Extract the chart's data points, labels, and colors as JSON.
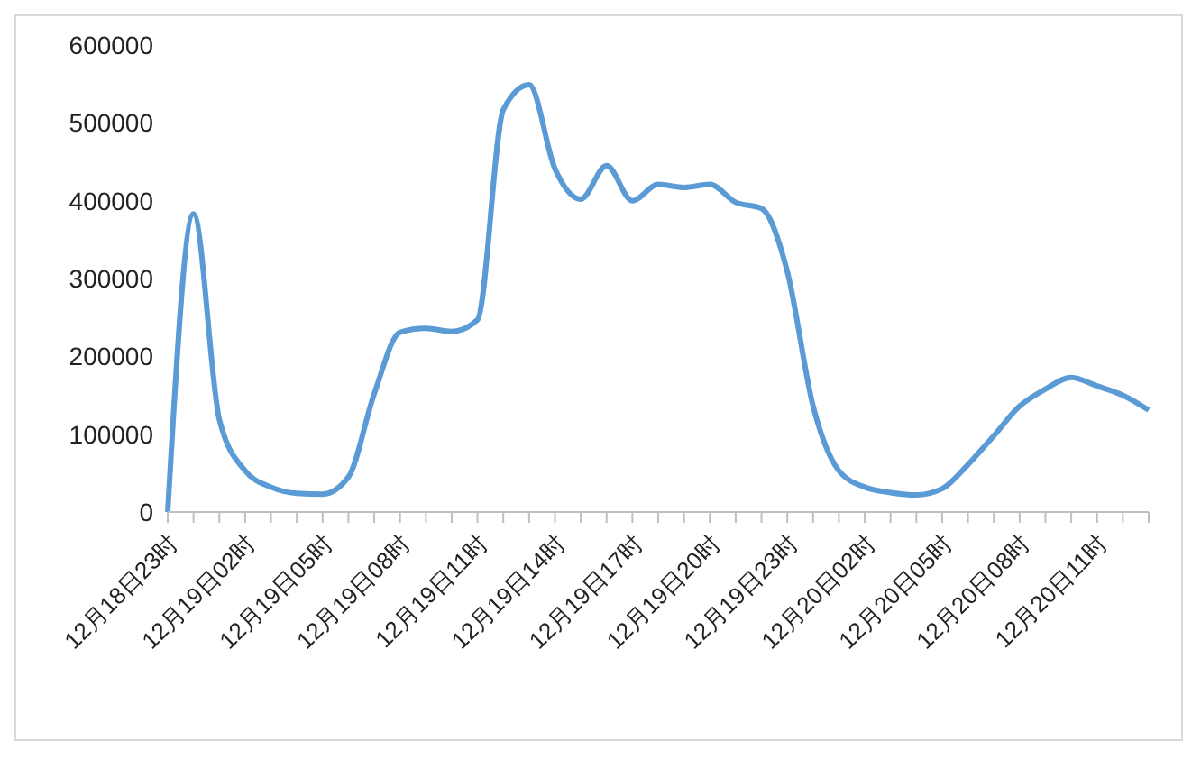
{
  "chart_data": {
    "type": "line",
    "categories": [
      "12月18日23时",
      null,
      null,
      "12月19日02时",
      null,
      null,
      "12月19日05时",
      null,
      null,
      "12月19日08时",
      null,
      null,
      "12月19日11时",
      null,
      null,
      "12月19日14时",
      null,
      null,
      "12月19日17时",
      null,
      null,
      "12月19日20时",
      null,
      null,
      "12月19日23时",
      null,
      null,
      "12月20日02时",
      null,
      null,
      "12月20日05时",
      null,
      null,
      "12月20日08时",
      null,
      null,
      "12月20日11时",
      null,
      null
    ],
    "series": [
      {
        "color": "#5b9bd5",
        "values": [
          0,
          383000,
          119000,
          53000,
          32000,
          24000,
          23000,
          45000,
          152000,
          231000,
          236000,
          232000,
          247000,
          517000,
          549000,
          441000,
          402000,
          445000,
          400000,
          421000,
          417000,
          421000,
          398000,
          390000,
          309000,
          136000,
          53000,
          32000,
          25000,
          22000,
          30000,
          61000,
          98000,
          136000,
          158000,
          173000,
          162000,
          150000,
          131000
        ]
      }
    ],
    "ylim": [
      0,
      600000
    ],
    "yticks": [
      0,
      100000,
      200000,
      300000,
      400000,
      500000,
      600000
    ]
  }
}
